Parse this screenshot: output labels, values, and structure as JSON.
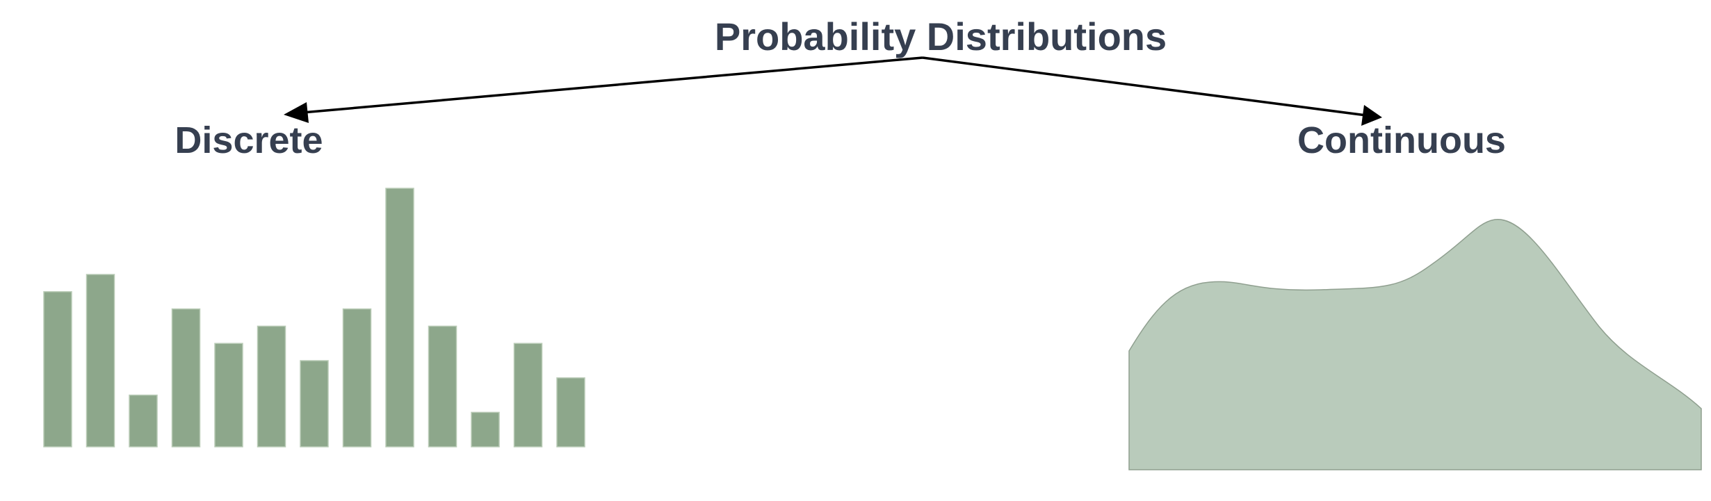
{
  "title": "Probability Distributions",
  "branches": {
    "discrete": {
      "label": "Discrete"
    },
    "continuous": {
      "label": "Continuous"
    }
  },
  "colors": {
    "text": "#363f50",
    "bar_fill": "#8da78b",
    "density_fill": "#b9cbbb",
    "arrow": "#000000"
  },
  "discrete_example": {
    "relative_heights": [
      9,
      10,
      3,
      8,
      6,
      7,
      5,
      8,
      15,
      7,
      2,
      6,
      4
    ]
  },
  "continuous_example": {
    "shape": "smooth-density-curve"
  }
}
